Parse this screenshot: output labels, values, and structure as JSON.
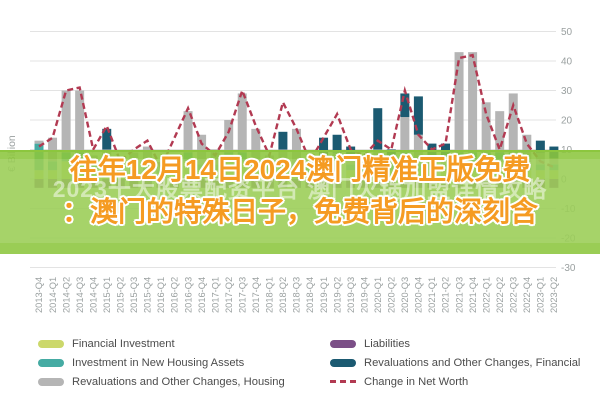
{
  "overlay": {
    "title_line1": "往年12月14日2024澳门精准正版免费",
    "title_line2": "：澳门的特殊日子，免费背后的深刻含",
    "watermark": "2023十大股票配资平台 澳门火锅加盟详情攻略",
    "band_color": "#8cc63e",
    "title_color": "#f59b22"
  },
  "chart_data": {
    "type": "bar",
    "stacked": true,
    "title": "",
    "unit_label": "€ Billion",
    "xlabel": "",
    "ylabel": "€ Billion",
    "ylim": [
      -30,
      50
    ],
    "yticks": [
      50,
      40,
      30,
      20,
      10,
      0,
      -10,
      -20,
      -30
    ],
    "grid": true,
    "legend_position": "bottom",
    "categories": [
      "2013-Q4",
      "2014-Q1",
      "2014-Q2",
      "2014-Q3",
      "2014-Q4",
      "2015-Q1",
      "2015-Q2",
      "2015-Q3",
      "2015-Q4",
      "2016-Q1",
      "2016-Q2",
      "2016-Q3",
      "2016-Q4",
      "2017-Q1",
      "2017-Q2",
      "2017-Q3",
      "2017-Q4",
      "2018-Q1",
      "2018-Q2",
      "2018-Q3",
      "2018-Q4",
      "2019-Q1",
      "2019-Q2",
      "2019-Q3",
      "2019-Q4",
      "2020-Q1",
      "2020-Q2",
      "2020-Q3",
      "2020-Q4",
      "2021-Q1",
      "2021-Q2",
      "2021-Q3",
      "2021-Q4",
      "2022-Q1",
      "2022-Q2",
      "2022-Q3",
      "2022-Q4",
      "2023-Q1",
      "2023-Q2"
    ],
    "series": [
      {
        "name": "Financial Investment",
        "color": "#ccd86b",
        "values": [
          3,
          3,
          6,
          6,
          3,
          3,
          2,
          3,
          3,
          2,
          3,
          6,
          3,
          3,
          6,
          6,
          3,
          3,
          3,
          3,
          2,
          3,
          3,
          3,
          2,
          3,
          3,
          6,
          3,
          3,
          3,
          6,
          6,
          6,
          6,
          6,
          3,
          3,
          3
        ]
      },
      {
        "name": "Investment in New Housing Assets",
        "color": "#45aba3",
        "values": [
          9,
          3,
          3,
          3,
          2,
          2,
          2,
          2,
          2,
          1,
          2,
          3,
          2,
          2,
          3,
          3,
          2,
          2,
          2,
          2,
          2,
          2,
          2,
          2,
          2,
          2,
          2,
          3,
          2,
          2,
          2,
          3,
          3,
          3,
          3,
          3,
          2,
          2,
          2
        ]
      },
      {
        "name": "Revaluations and Other Changes, Housing",
        "color": "#b5b5b5",
        "values": [
          1,
          8,
          21,
          21,
          3,
          5,
          2,
          4,
          6,
          2,
          2,
          14,
          10,
          5,
          11,
          20,
          12,
          3,
          5,
          12,
          3,
          3,
          4,
          2,
          2,
          5,
          1,
          12,
          10,
          3,
          3,
          34,
          34,
          17,
          14,
          20,
          10,
          4,
          2
        ]
      },
      {
        "name": "Revaluations and Other Changes, Financial",
        "color": "#1b5a71",
        "values": [
          0,
          0,
          0,
          0,
          0,
          7,
          0,
          0,
          0,
          0,
          0,
          0,
          0,
          0,
          0,
          0,
          0,
          0,
          6,
          0,
          0,
          6,
          6,
          4,
          0,
          14,
          4,
          8,
          13,
          4,
          4,
          0,
          0,
          0,
          0,
          0,
          0,
          4,
          4
        ]
      },
      {
        "name": "Liabilities",
        "color": "#7b4f87",
        "values": [
          -3,
          -3,
          -3,
          -3,
          -3,
          -3,
          -3,
          -3,
          -3,
          -3,
          -3,
          -3,
          -3,
          -3,
          -3,
          -3,
          -3,
          -3,
          -3,
          -3,
          -3,
          -3,
          -3,
          -3,
          -3,
          -3,
          -3,
          -3,
          -3,
          -3,
          -3,
          -3,
          -3,
          -3,
          -3,
          -3,
          -3,
          -3,
          -3
        ]
      }
    ],
    "line_series": {
      "name": "Change in Net Worth",
      "color": "#b23a52",
      "dashed": true,
      "values": [
        11,
        14,
        30,
        31,
        10,
        18,
        6,
        10,
        13,
        4,
        14,
        24,
        12,
        8,
        16,
        30,
        18,
        8,
        26,
        17,
        6,
        14,
        22,
        10,
        8,
        13,
        10,
        30,
        15,
        10,
        12,
        41,
        42,
        22,
        10,
        25,
        12,
        6,
        4
      ]
    }
  },
  "legend": {
    "items": [
      {
        "label": "Financial Investment",
        "color": "#ccd86b",
        "type": "box"
      },
      {
        "label": "Investment in New Housing Assets",
        "color": "#45aba3",
        "type": "box"
      },
      {
        "label": "Revaluations and Other Changes, Housing",
        "color": "#b5b5b5",
        "type": "box"
      },
      {
        "label": "Liabilities",
        "color": "#7b4f87",
        "type": "box"
      },
      {
        "label": "Revaluations and Other Changes, Financial",
        "color": "#1b5a71",
        "type": "box"
      },
      {
        "label": "Change in Net Worth",
        "color": "#b23a52",
        "type": "dash"
      }
    ]
  }
}
